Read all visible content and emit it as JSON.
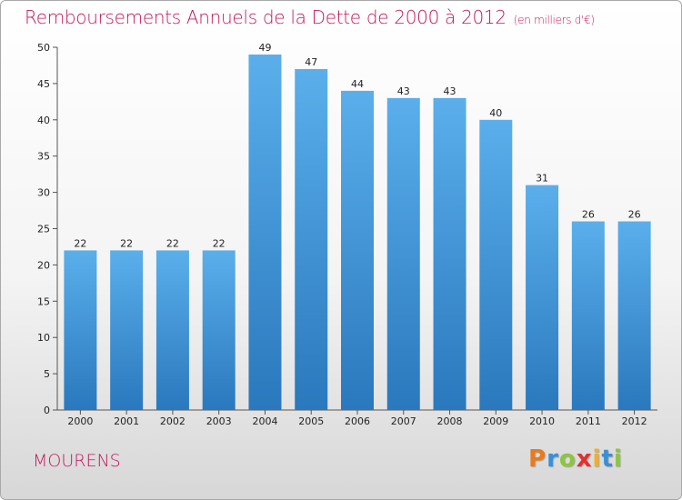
{
  "title": "Remboursements Annuels de la Dette de 2000 à 2012",
  "subtitle": "(en milliers d'€)",
  "commune": "MOURENS",
  "logo": {
    "letters": [
      "P",
      "r",
      "o",
      "x",
      "i",
      "t",
      "i"
    ],
    "colors": [
      "#e87b1e",
      "#3a8fd6",
      "#8cc63f",
      "#e2312d",
      "#f2b01e",
      "#3a8fd6",
      "#8cc63f"
    ]
  },
  "colors": {
    "bar": "#4b9fdf",
    "title": "#c2185b"
  },
  "chart_data": {
    "type": "bar",
    "categories": [
      "2000",
      "2001",
      "2002",
      "2003",
      "2004",
      "2005",
      "2006",
      "2007",
      "2008",
      "2009",
      "2010",
      "2011",
      "2012"
    ],
    "values": [
      22,
      22,
      22,
      22,
      49,
      47,
      44,
      43,
      43,
      40,
      31,
      26,
      26
    ],
    "ylim": [
      0,
      50
    ],
    "yticks": [
      0,
      5,
      10,
      15,
      20,
      25,
      30,
      35,
      40,
      45,
      50
    ],
    "grid": false,
    "title": "Remboursements Annuels de la Dette de 2000 à 2012",
    "xlabel": "",
    "ylabel": ""
  }
}
